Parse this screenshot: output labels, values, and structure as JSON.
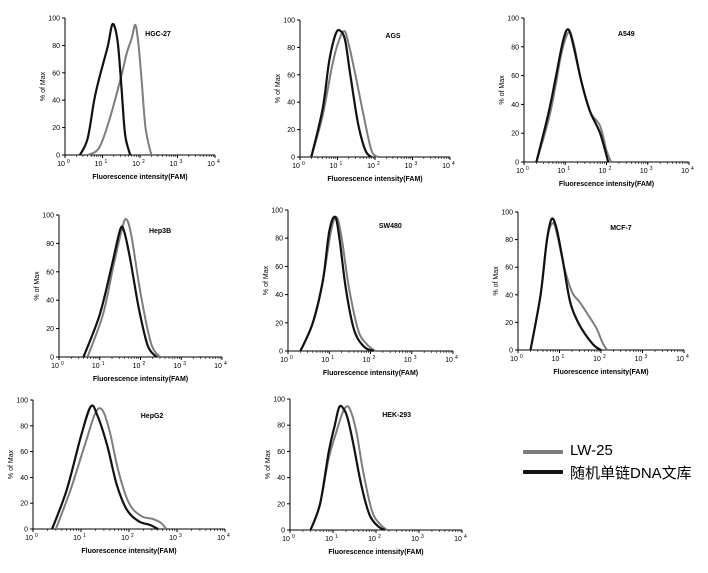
{
  "colors": {
    "lw25": "#7d7d7d",
    "library": "#111111"
  },
  "legend": {
    "lw25_label": "LW-25",
    "library_label": "随机单链DNA文库"
  },
  "axis_text": {
    "xlabel": "Fluorescence intensity(FAM)",
    "ylabel": "% of Max",
    "x_tick_base": "10",
    "x_tick_exponents": [
      "0",
      "1",
      "2",
      "3",
      "4"
    ],
    "y_ticks": [
      "0",
      "20",
      "40",
      "60",
      "80",
      "100"
    ]
  },
  "chart_data": [
    {
      "type": "line",
      "title": "HGC-27",
      "xscale": "log",
      "xlim": [
        1,
        10000
      ],
      "ylim": [
        0,
        100
      ],
      "xlabel": "Fluorescence intensity(FAM)",
      "ylabel": "% of Max",
      "series": [
        {
          "name": "LW-25",
          "x": [
            4,
            8,
            15,
            30,
            45,
            60,
            75,
            90,
            110,
            140,
            200
          ],
          "y": [
            0,
            5,
            25,
            55,
            75,
            85,
            95,
            82,
            55,
            20,
            0
          ]
        },
        {
          "name": "随机单链DNA文库",
          "x": [
            2.5,
            4,
            6,
            8,
            10,
            14,
            18,
            22,
            26,
            32,
            40,
            55
          ],
          "y": [
            0,
            12,
            40,
            55,
            65,
            80,
            95,
            92,
            80,
            50,
            15,
            0
          ]
        }
      ]
    },
    {
      "type": "line",
      "title": "AGS",
      "xscale": "log",
      "xlim": [
        1,
        10000
      ],
      "ylim": [
        0,
        100
      ],
      "xlabel": "Fluorescence intensity(FAM)",
      "ylabel": "% of Max",
      "series": [
        {
          "name": "LW-25",
          "x": [
            2,
            4,
            7,
            10,
            15,
            20,
            30,
            50,
            80,
            120
          ],
          "y": [
            0,
            30,
            65,
            82,
            92,
            82,
            60,
            30,
            5,
            0
          ]
        },
        {
          "name": "随机单链DNA文库",
          "x": [
            2,
            4,
            6,
            9,
            12,
            16,
            22,
            35,
            55,
            80
          ],
          "y": [
            0,
            35,
            70,
            90,
            92,
            85,
            60,
            25,
            5,
            0
          ]
        }
      ]
    },
    {
      "type": "line",
      "title": "A549",
      "xscale": "log",
      "xlim": [
        1,
        10000
      ],
      "ylim": [
        0,
        100
      ],
      "xlabel": "Fluorescence intensity(FAM)",
      "ylabel": "% of Max",
      "series": [
        {
          "name": "LW-25",
          "x": [
            2,
            4,
            6,
            8,
            12,
            16,
            25,
            40,
            70,
            100,
            130
          ],
          "y": [
            0,
            30,
            55,
            75,
            90,
            82,
            55,
            35,
            25,
            8,
            0
          ]
        },
        {
          "name": "随机单链DNA文库",
          "x": [
            2,
            4,
            6,
            9,
            12,
            16,
            25,
            40,
            70,
            110
          ],
          "y": [
            0,
            35,
            60,
            85,
            92,
            80,
            55,
            35,
            20,
            0
          ]
        }
      ]
    },
    {
      "type": "line",
      "title": "Hep3B",
      "xscale": "log",
      "xlim": [
        1,
        10000
      ],
      "ylim": [
        0,
        100
      ],
      "xlabel": "Fluorescence intensity(FAM)",
      "ylabel": "% of Max",
      "series": [
        {
          "name": "LW-25",
          "x": [
            5,
            12,
            22,
            35,
            45,
            60,
            100,
            180,
            300
          ],
          "y": [
            0,
            30,
            65,
            90,
            97,
            85,
            45,
            10,
            0
          ]
        },
        {
          "name": "随机单链DNA文库",
          "x": [
            4,
            10,
            20,
            32,
            40,
            55,
            90,
            150,
            250
          ],
          "y": [
            0,
            30,
            65,
            90,
            88,
            70,
            35,
            8,
            0
          ]
        }
      ]
    },
    {
      "type": "line",
      "title": "SW480",
      "xscale": "log",
      "xlim": [
        1,
        10000
      ],
      "ylim": [
        0,
        100
      ],
      "xlabel": "Fluorescence intensity(FAM)",
      "ylabel": "% of Max",
      "series": [
        {
          "name": "LW-25",
          "x": [
            2,
            4,
            7,
            11,
            15,
            20,
            30,
            50,
            80,
            130
          ],
          "y": [
            0,
            20,
            50,
            85,
            95,
            80,
            45,
            15,
            5,
            0
          ]
        },
        {
          "name": "随机单链DNA文库",
          "x": [
            2,
            4,
            7,
            10,
            14,
            18,
            25,
            40,
            70,
            120
          ],
          "y": [
            0,
            20,
            50,
            85,
            95,
            78,
            45,
            15,
            3,
            0
          ]
        }
      ]
    },
    {
      "type": "line",
      "title": "MCF-7",
      "xscale": "log",
      "xlim": [
        1,
        10000
      ],
      "ylim": [
        0,
        100
      ],
      "xlabel": "Fluorescence intensity(FAM)",
      "ylabel": "% of Max",
      "series": [
        {
          "name": "LW-25",
          "x": [
            2,
            3.5,
            5,
            7,
            9,
            13,
            20,
            30,
            50,
            80,
            110,
            140
          ],
          "y": [
            0,
            40,
            80,
            92,
            82,
            60,
            42,
            35,
            25,
            15,
            5,
            0
          ]
        },
        {
          "name": "随机单链DNA文库",
          "x": [
            2,
            3.5,
            5,
            6.5,
            8.5,
            12,
            18,
            28,
            45,
            70,
            100
          ],
          "y": [
            0,
            40,
            80,
            95,
            88,
            65,
            35,
            20,
            10,
            3,
            0
          ]
        }
      ]
    },
    {
      "type": "line",
      "title": "HepG2",
      "xscale": "log",
      "xlim": [
        1,
        10000
      ],
      "ylim": [
        0,
        100
      ],
      "xlabel": "Fluorescence intensity(FAM)",
      "ylabel": "% of Max",
      "series": [
        {
          "name": "LW-25",
          "x": [
            3,
            6,
            12,
            20,
            28,
            40,
            60,
            100,
            180,
            300,
            450,
            600
          ],
          "y": [
            0,
            30,
            65,
            90,
            92,
            75,
            45,
            20,
            10,
            8,
            5,
            0
          ]
        },
        {
          "name": "随机单链DNA文库",
          "x": [
            2.5,
            5,
            10,
            16,
            22,
            35,
            55,
            90,
            160,
            280,
            400
          ],
          "y": [
            0,
            30,
            72,
            95,
            88,
            65,
            35,
            15,
            6,
            3,
            0
          ]
        }
      ]
    },
    {
      "type": "line",
      "title": "HEK-293",
      "xscale": "log",
      "xlim": [
        1,
        10000
      ],
      "ylim": [
        0,
        100
      ],
      "xlabel": "Fluorescence intensity(FAM)",
      "ylabel": "% of Max",
      "series": [
        {
          "name": "LW-25",
          "x": [
            3,
            5,
            8,
            12,
            16,
            20,
            25,
            35,
            50,
            80,
            120,
            180
          ],
          "y": [
            0,
            20,
            55,
            75,
            88,
            94,
            92,
            75,
            45,
            15,
            5,
            0
          ]
        },
        {
          "name": "随机单链DNA文库",
          "x": [
            3,
            5,
            8,
            11,
            14,
            18,
            22,
            30,
            45,
            70,
            110,
            160
          ],
          "y": [
            0,
            20,
            60,
            80,
            94,
            92,
            85,
            65,
            35,
            12,
            3,
            0
          ]
        }
      ]
    }
  ]
}
